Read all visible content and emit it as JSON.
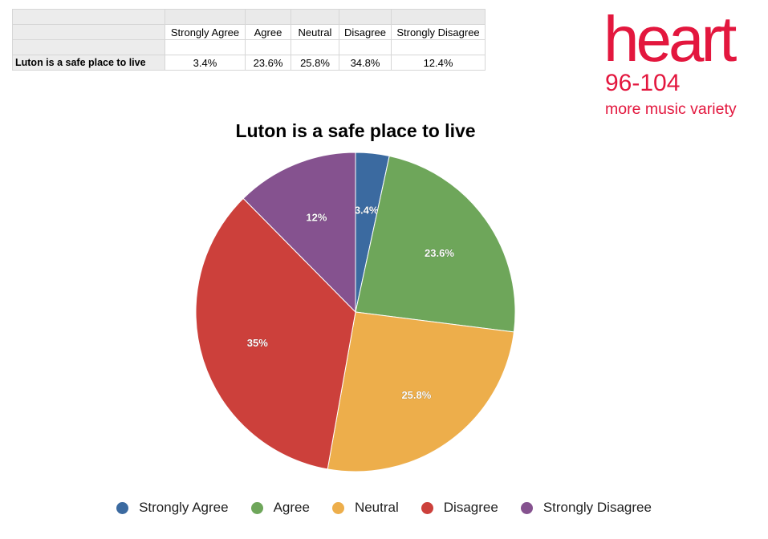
{
  "table": {
    "headers": [
      "",
      "Strongly Agree",
      "Agree",
      "Neutral",
      "Disagree",
      "Strongly Disagree"
    ],
    "row": [
      "Luton is a safe place to live",
      "3.4%",
      "23.6%",
      "25.8%",
      "34.8%",
      "12.4%"
    ]
  },
  "logo": {
    "word": "heart",
    "frequency": "96-104",
    "tagline": "more music variety",
    "color": "#e3173e"
  },
  "chart_data": {
    "type": "pie",
    "title": "Luton is a safe place to live",
    "categories": [
      "Strongly Agree",
      "Agree",
      "Neutral",
      "Disagree",
      "Strongly Disagree"
    ],
    "values": [
      3.4,
      23.6,
      25.8,
      34.8,
      12.4
    ],
    "data_labels": [
      "3.4%",
      "23.6%",
      "25.8%",
      "35%",
      "12%"
    ],
    "colors": [
      "#3b6aa0",
      "#6ea65a",
      "#edae4b",
      "#cc403b",
      "#85528f"
    ],
    "start_angle": "12 o'clock",
    "direction": "clockwise",
    "legend_position": "bottom"
  }
}
